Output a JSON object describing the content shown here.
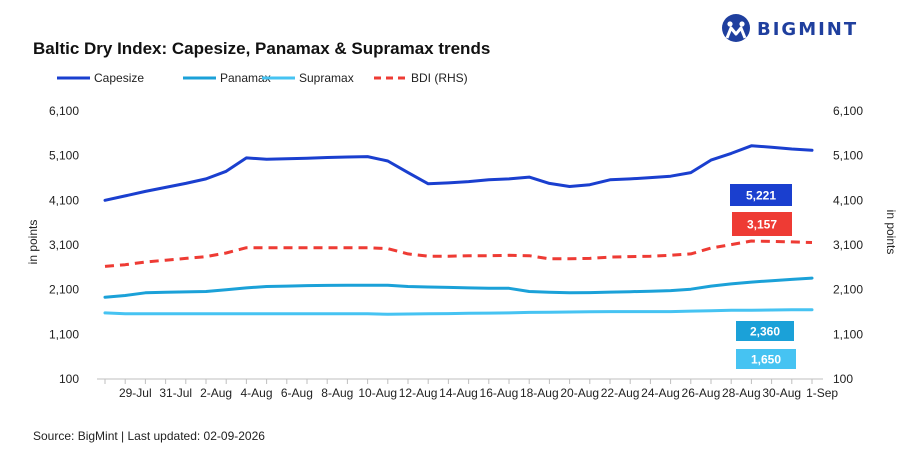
{
  "logo": {
    "text": "BIGMINT"
  },
  "source_note": "Source: BigMint | Last updated: 02-09-2026",
  "colors": {
    "Capesize": "#1a3fcf",
    "Panamax": "#1ba1d8",
    "Supramax": "#46c3f2",
    "BDI (RHS)": "#ee3b34"
  },
  "chart_data": {
    "type": "line",
    "title": "Baltic Dry Index: Capesize, Panamax & Supramax trends",
    "ylabel_left": "in points",
    "ylabel_right": "in points",
    "ylim": [
      100,
      6100
    ],
    "y_ticks": [
      "6,100",
      "5,100",
      "4,100",
      "3,100",
      "2,100",
      "1,100",
      "100"
    ],
    "x_ticks": [
      "29-Jul",
      "31-Jul",
      "2-Aug",
      "4-Aug",
      "6-Aug",
      "8-Aug",
      "10-Aug",
      "12-Aug",
      "14-Aug",
      "16-Aug",
      "18-Aug",
      "20-Aug",
      "22-Aug",
      "24-Aug",
      "26-Aug",
      "28-Aug",
      "30-Aug",
      "1-Sep"
    ],
    "legend_position": "top-left",
    "grid": false,
    "x": [
      "28-Jul",
      "29-Jul",
      "30-Jul",
      "31-Jul",
      "1-Aug",
      "2-Aug",
      "3-Aug",
      "4-Aug",
      "5-Aug",
      "6-Aug",
      "7-Aug",
      "8-Aug",
      "9-Aug",
      "10-Aug",
      "11-Aug",
      "12-Aug",
      "13-Aug",
      "14-Aug",
      "15-Aug",
      "16-Aug",
      "17-Aug",
      "18-Aug",
      "19-Aug",
      "20-Aug",
      "21-Aug",
      "22-Aug",
      "23-Aug",
      "24-Aug",
      "25-Aug",
      "26-Aug",
      "27-Aug",
      "28-Aug",
      "29-Aug",
      "30-Aug",
      "31-Aug",
      "1-Sep"
    ],
    "series": [
      {
        "name": "Capesize",
        "dash": "solid",
        "values": [
          4100,
          4200,
          4300,
          4390,
          4480,
          4580,
          4750,
          5050,
          5020,
          5030,
          5040,
          5060,
          5070,
          5080,
          4980,
          4720,
          4470,
          4490,
          4520,
          4560,
          4580,
          4620,
          4480,
          4410,
          4450,
          4560,
          4580,
          4610,
          4640,
          4720,
          5000,
          5150,
          5320,
          5290,
          5250,
          5221
        ]
      },
      {
        "name": "Panamax",
        "dash": "solid",
        "values": [
          1930,
          1970,
          2030,
          2040,
          2050,
          2060,
          2100,
          2140,
          2170,
          2180,
          2190,
          2195,
          2200,
          2200,
          2200,
          2170,
          2160,
          2150,
          2140,
          2130,
          2130,
          2060,
          2040,
          2030,
          2035,
          2045,
          2055,
          2065,
          2080,
          2110,
          2180,
          2230,
          2270,
          2300,
          2330,
          2360
        ]
      },
      {
        "name": "Supramax",
        "dash": "solid",
        "values": [
          1580,
          1560,
          1560,
          1560,
          1560,
          1560,
          1560,
          1560,
          1560,
          1560,
          1560,
          1560,
          1560,
          1560,
          1550,
          1555,
          1560,
          1565,
          1570,
          1575,
          1580,
          1590,
          1595,
          1600,
          1605,
          1610,
          1610,
          1610,
          1610,
          1620,
          1630,
          1640,
          1640,
          1645,
          1650,
          1650
        ]
      },
      {
        "name": "BDI (RHS)",
        "dash": "dashed",
        "values": [
          2620,
          2660,
          2720,
          2760,
          2800,
          2840,
          2920,
          3040,
          3040,
          3040,
          3040,
          3040,
          3040,
          3040,
          3020,
          2900,
          2850,
          2850,
          2860,
          2860,
          2870,
          2860,
          2790,
          2790,
          2800,
          2830,
          2840,
          2850,
          2870,
          2900,
          3030,
          3110,
          3190,
          3180,
          3170,
          3157
        ]
      }
    ],
    "data_labels": [
      {
        "series": "Capesize",
        "text": "5,221"
      },
      {
        "series": "BDI (RHS)",
        "text": "3,157"
      },
      {
        "series": "Panamax",
        "text": "2,360"
      },
      {
        "series": "Supramax",
        "text": "1,650"
      }
    ]
  }
}
